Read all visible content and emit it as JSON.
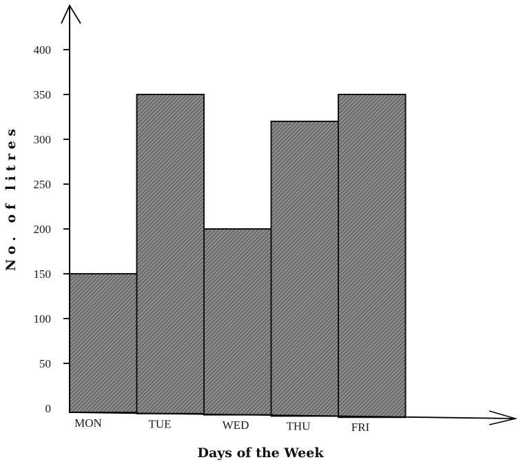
{
  "chart_data": {
    "type": "bar",
    "title": "",
    "xlabel": "Days of the Week",
    "ylabel": "N o .   o f   l i t r e s",
    "categories": [
      "MON",
      "TUE",
      "WED",
      "THU",
      "FRI"
    ],
    "values": [
      150,
      350,
      200,
      320,
      350
    ],
    "ylim": [
      0,
      400
    ],
    "yticks": [
      0,
      50,
      100,
      150,
      200,
      250,
      300,
      350,
      400
    ],
    "bar_color": "#8a8a8a",
    "hatch_color": "#555555",
    "grid": false,
    "legend": "none"
  }
}
